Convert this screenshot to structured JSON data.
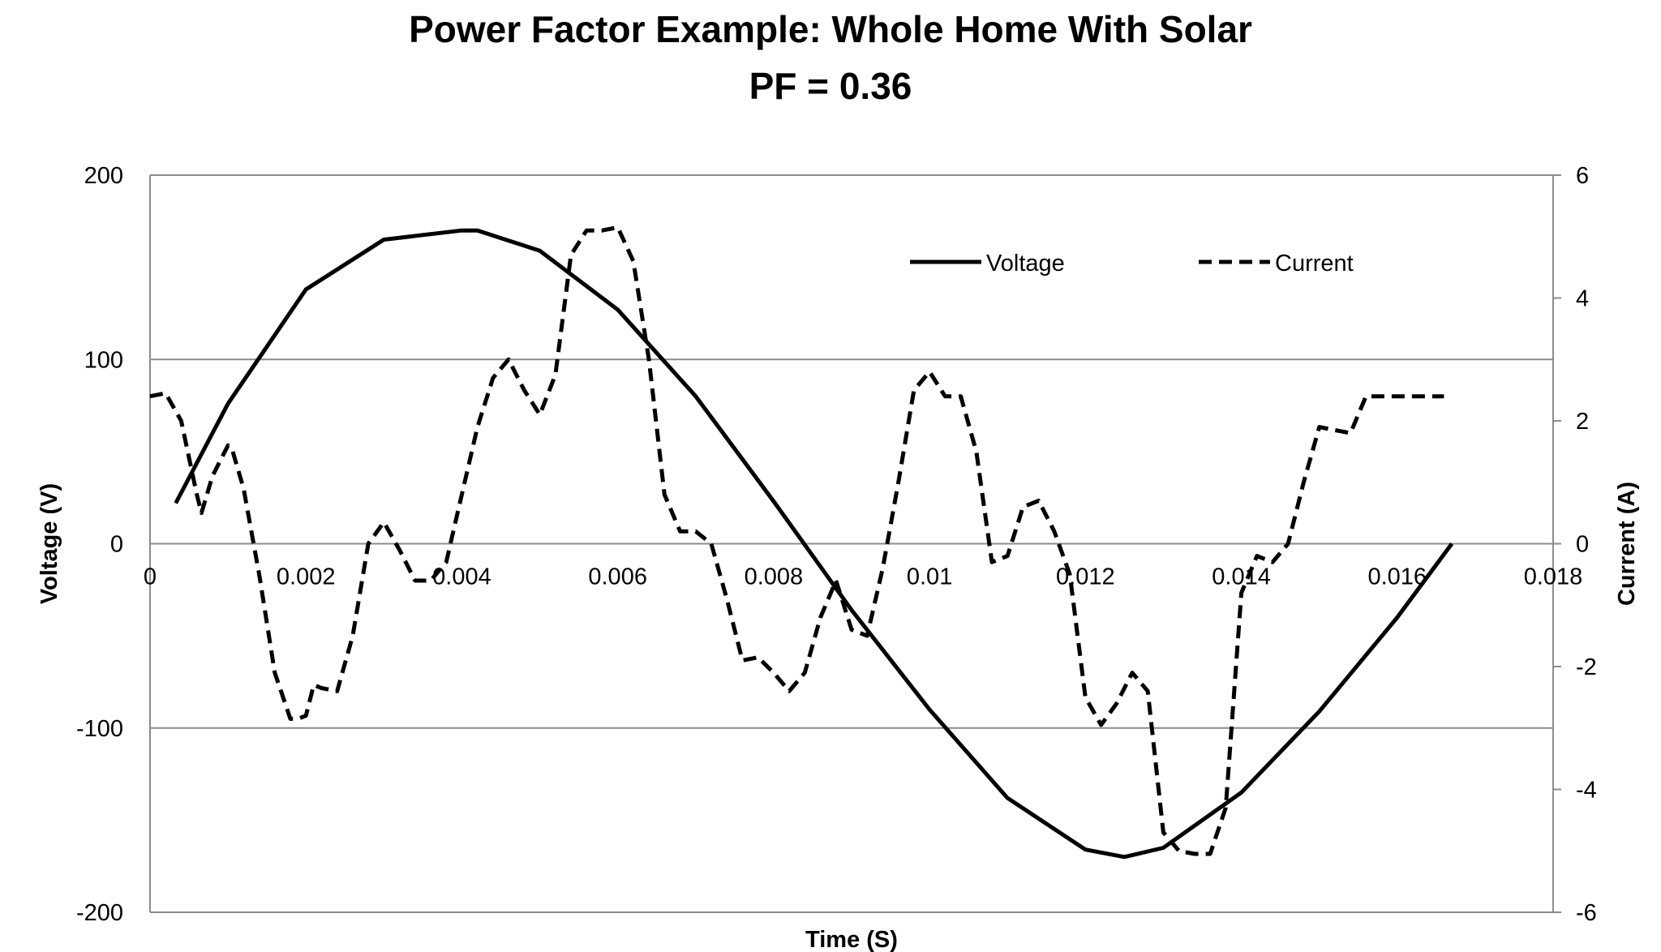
{
  "chart_data": {
    "type": "line",
    "title": "Power Factor Example: Whole Home With Solar",
    "subtitle": "PF = 0.36",
    "xlabel": "Time (S)",
    "ylabel": "Voltage (V)",
    "y2label": "Current (A)",
    "xlim": [
      0,
      0.018
    ],
    "ylim": [
      -200,
      200
    ],
    "y2lim": [
      -6,
      6
    ],
    "x_ticks": [
      "0",
      "0.002",
      "0.004",
      "0.006",
      "0.008",
      "0.01",
      "0.012",
      "0.014",
      "0.016",
      "0.018"
    ],
    "y_ticks": [
      "200",
      "100",
      "0",
      "-100",
      "-200"
    ],
    "y2_ticks": [
      "6",
      "4",
      "2",
      "0",
      "-2",
      "-4",
      "-6"
    ],
    "grid": "horizontal",
    "legend_position": "top-right",
    "colors": {
      "line": "#000000",
      "grid": "#8c8c8c",
      "axis": "#8c8c8c"
    },
    "series": [
      {
        "name": "Voltage",
        "axis": "left",
        "style": "solid",
        "x": [
          0.00033,
          0.001,
          0.002,
          0.003,
          0.004,
          0.0042,
          0.005,
          0.006,
          0.007,
          0.008,
          0.009,
          0.01,
          0.011,
          0.012,
          0.0125,
          0.013,
          0.014,
          0.015,
          0.016,
          0.0167
        ],
        "y": [
          22,
          76,
          138,
          165,
          170,
          170,
          159,
          127,
          80,
          23,
          -36,
          -90,
          -138,
          -166,
          -170,
          -165,
          -135,
          -91,
          -40,
          0
        ]
      },
      {
        "name": "Current",
        "axis": "right",
        "style": "dashed",
        "x": [
          0.0,
          0.0002,
          0.0004,
          0.0006,
          0.00066,
          0.0008,
          0.001,
          0.00105,
          0.0012,
          0.0014,
          0.0016,
          0.0018,
          0.0019,
          0.002,
          0.0021,
          0.0022,
          0.0024,
          0.0026,
          0.0028,
          0.003,
          0.0032,
          0.0034,
          0.0036,
          0.0038,
          0.004,
          0.0042,
          0.0044,
          0.0046,
          0.0048,
          0.005,
          0.0052,
          0.0054,
          0.0056,
          0.0058,
          0.006,
          0.0062,
          0.0064,
          0.0066,
          0.0068,
          0.007,
          0.0072,
          0.0074,
          0.0076,
          0.0078,
          0.008,
          0.0082,
          0.0084,
          0.0086,
          0.0088,
          0.009,
          0.0092,
          0.0094,
          0.0096,
          0.0098,
          0.01,
          0.0102,
          0.0104,
          0.0106,
          0.0108,
          0.011,
          0.0112,
          0.0114,
          0.0116,
          0.0118,
          0.012,
          0.0122,
          0.0124,
          0.0126,
          0.0128,
          0.013,
          0.0132,
          0.0134,
          0.0136,
          0.0138,
          0.014,
          0.0142,
          0.0144,
          0.0146,
          0.0148,
          0.015,
          0.0152,
          0.0154,
          0.0156,
          0.0158,
          0.016,
          0.0162,
          0.0164,
          0.0166
        ],
        "y": [
          2.4,
          2.45,
          2.0,
          0.8,
          0.5,
          1.1,
          1.6,
          1.55,
          0.9,
          -0.5,
          -2.1,
          -2.85,
          -2.85,
          -2.8,
          -2.3,
          -2.35,
          -2.4,
          -1.5,
          0.0,
          0.35,
          -0.1,
          -0.6,
          -0.6,
          -0.3,
          0.8,
          1.9,
          2.7,
          3.0,
          2.5,
          2.1,
          2.75,
          4.7,
          5.1,
          5.1,
          5.15,
          4.6,
          3.0,
          0.8,
          0.2,
          0.2,
          0.0,
          -0.9,
          -1.9,
          -1.85,
          -2.1,
          -2.4,
          -2.1,
          -1.2,
          -0.6,
          -1.4,
          -1.5,
          -0.4,
          1.0,
          2.5,
          2.8,
          2.4,
          2.4,
          1.5,
          -0.3,
          -0.2,
          0.6,
          0.7,
          0.2,
          -0.5,
          -2.5,
          -2.95,
          -2.6,
          -2.1,
          -2.4,
          -4.7,
          -5.0,
          -5.05,
          -5.05,
          -4.3,
          -0.8,
          -0.2,
          -0.3,
          0.0,
          1.0,
          1.9,
          1.85,
          1.8,
          2.4,
          2.4,
          2.4,
          2.4,
          2.4,
          2.4
        ]
      }
    ]
  }
}
